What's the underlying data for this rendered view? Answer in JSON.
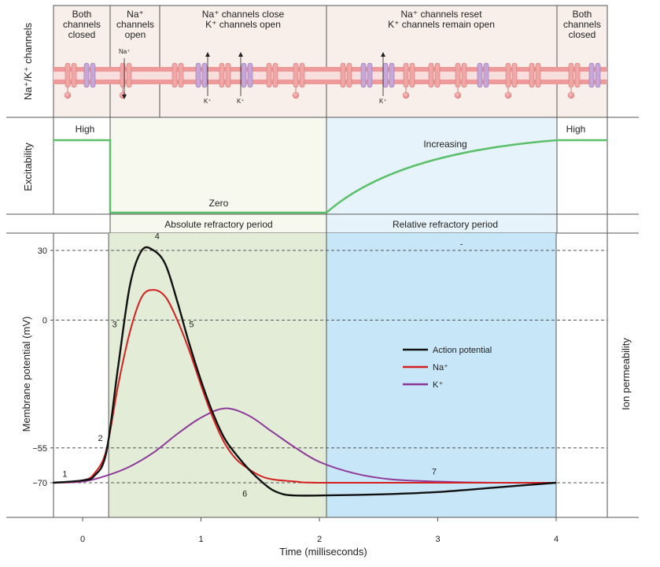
{
  "channel_panel": {
    "row_label": "Na⁺/K⁺ channels",
    "phases": [
      {
        "lines": [
          "Both",
          "channels",
          "closed"
        ]
      },
      {
        "lines": [
          "Na⁺",
          "channels",
          "open"
        ]
      },
      {
        "lines": [
          "Na⁺  channels close",
          "K⁺  channels open"
        ]
      },
      {
        "lines": [
          "Na⁺  channels reset",
          "K⁺  channels remain open"
        ]
      },
      {
        "lines": [
          "Both",
          "channels",
          "closed"
        ]
      }
    ],
    "ion_na": "Na⁺",
    "ion_k": "K⁺"
  },
  "excitability_panel": {
    "row_label": "Excitability",
    "high_left": "High",
    "zero": "Zero",
    "increasing": "Increasing",
    "high_right": "High"
  },
  "refractory": {
    "absolute": "Absolute refractory period",
    "relative": "Relative refractory period"
  },
  "colors": {
    "action_potential": "#111111",
    "na": "#d42020",
    "k": "#8e3a9a",
    "excitability": "#5cbf6a",
    "absolute_fill": "#e2ecd6",
    "relative_fill": "#c7e6f7"
  },
  "chart_data": {
    "type": "line",
    "title": "",
    "xlabel": "Time (milliseconds)",
    "ylabel": "Membrane potential (mV)",
    "y2label": "Ion permeability",
    "xlim": [
      -0.25,
      4.45
    ],
    "ylim": [
      -85,
      38
    ],
    "x_ticks": [
      0,
      1,
      2,
      3,
      4
    ],
    "x_tick_labels": [
      "0",
      "1",
      "2",
      "3",
      "4"
    ],
    "y_ticks": [
      30,
      0,
      -55,
      -70
    ],
    "y_tick_labels": [
      "30",
      "0",
      "−55",
      "−70"
    ],
    "legend": [
      "Action potential",
      "Na⁺",
      "K⁺"
    ],
    "series": [
      {
        "name": "Action potential",
        "x": [
          -0.25,
          0.0,
          0.1,
          0.2,
          0.3,
          0.4,
          0.5,
          0.6,
          0.7,
          0.8,
          0.9,
          1.0,
          1.1,
          1.2,
          1.3,
          1.4,
          1.5,
          1.6,
          1.7,
          1.8,
          2.0,
          2.5,
          3.0,
          3.5,
          4.0
        ],
        "values": [
          -70,
          -69,
          -67,
          -57,
          -20,
          15,
          30,
          30,
          24,
          8,
          -10,
          -26,
          -40,
          -51,
          -58,
          -64,
          -69,
          -73,
          -75,
          -75.5,
          -75.5,
          -75,
          -74,
          -72,
          -70
        ]
      },
      {
        "name": "Na⁺",
        "x": [
          -0.25,
          0.0,
          0.1,
          0.2,
          0.3,
          0.4,
          0.5,
          0.6,
          0.7,
          0.8,
          0.9,
          1.0,
          1.1,
          1.2,
          1.3,
          1.4,
          1.5,
          1.6,
          1.8,
          2.0,
          3.0,
          4.0
        ],
        "values": [
          -70,
          -69,
          -66,
          -56,
          -28,
          -5,
          10,
          13,
          10,
          0,
          -13,
          -28,
          -42,
          -53,
          -60,
          -64,
          -67,
          -68.5,
          -69.5,
          -70,
          -70,
          -70
        ]
      },
      {
        "name": "K⁺",
        "x": [
          -0.25,
          0.0,
          0.2,
          0.4,
          0.6,
          0.8,
          1.0,
          1.2,
          1.4,
          1.6,
          1.8,
          2.0,
          2.3,
          2.6,
          3.0,
          3.5,
          4.0
        ],
        "values": [
          -70,
          -69.5,
          -67,
          -63,
          -57,
          -49,
          -42,
          -38,
          -41,
          -48,
          -55,
          -61,
          -66,
          -68.5,
          -69.5,
          -70,
          -70
        ]
      }
    ],
    "absolute_refractory_range": [
      0.22,
      2.06
    ],
    "relative_refractory_range": [
      2.06,
      4.0
    ],
    "annotations": [
      {
        "text": "1",
        "x": -0.15,
        "y": -67.5
      },
      {
        "text": "2",
        "x": 0.15,
        "y": -52
      },
      {
        "text": "3",
        "x": 0.27,
        "y": -3
      },
      {
        "text": "4",
        "x": 0.63,
        "y": 35
      },
      {
        "text": "5",
        "x": 0.92,
        "y": -3
      },
      {
        "text": "6",
        "x": 1.37,
        "y": -76
      },
      {
        "text": "7",
        "x": 2.97,
        "y": -66.5
      },
      {
        "text": "-",
        "x": 3.2,
        "y": 31.5
      }
    ]
  }
}
